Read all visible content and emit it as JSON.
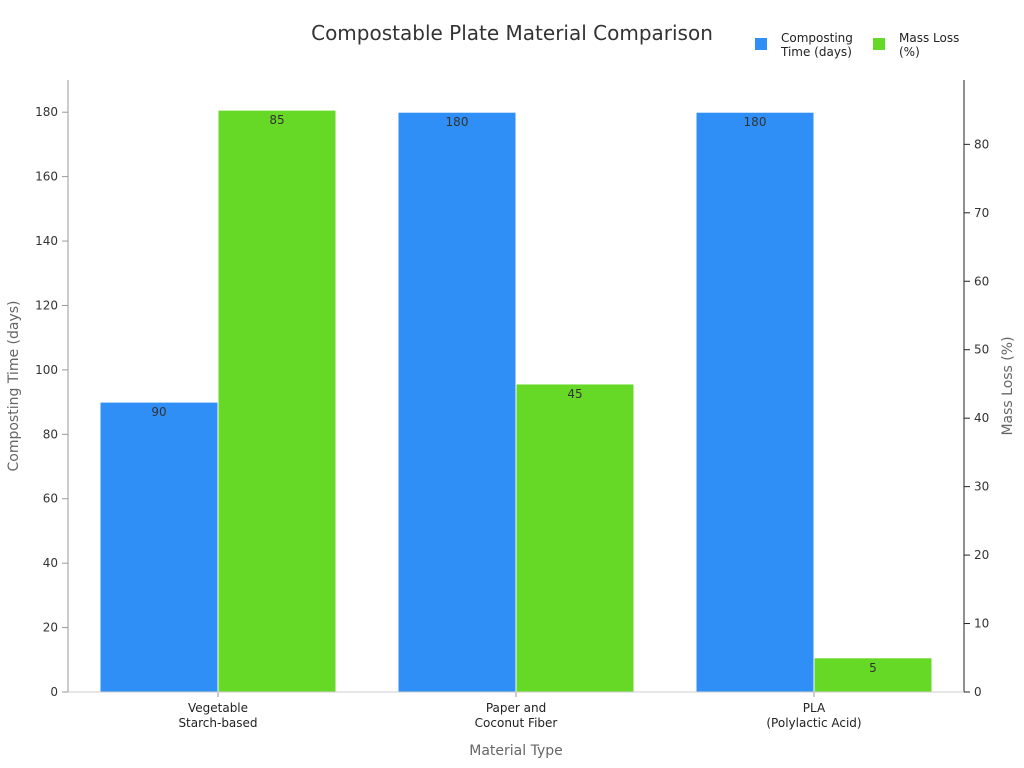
{
  "chart_data": {
    "type": "bar",
    "title": "Compostable Plate Material Comparison",
    "xlabel": "Material Type",
    "ylabel_left": "Composting Time (days)",
    "ylabel_right": "Mass Loss (%)",
    "categories": [
      [
        "Vegetable",
        "Starch-based"
      ],
      [
        "Paper and",
        "Coconut Fiber"
      ],
      [
        "PLA",
        "(Polylactic Acid)"
      ]
    ],
    "series": [
      {
        "name": [
          "Composting",
          "Time (days)"
        ],
        "axis": "left",
        "color": "#2f8ff7",
        "values": [
          90,
          180,
          180
        ]
      },
      {
        "name": [
          "Mass Loss",
          "(%)"
        ],
        "axis": "right",
        "color": "#66d926",
        "values": [
          85,
          45,
          5
        ]
      }
    ],
    "ylim_left": [
      0,
      190
    ],
    "ylim_right": [
      0,
      89.4
    ],
    "yticks_left": [
      0,
      20,
      40,
      60,
      80,
      100,
      120,
      140,
      160,
      180
    ],
    "yticks_right": [
      0,
      10,
      20,
      30,
      40,
      50,
      60,
      70,
      80
    ],
    "grid": false,
    "legend_position": "top-right"
  }
}
